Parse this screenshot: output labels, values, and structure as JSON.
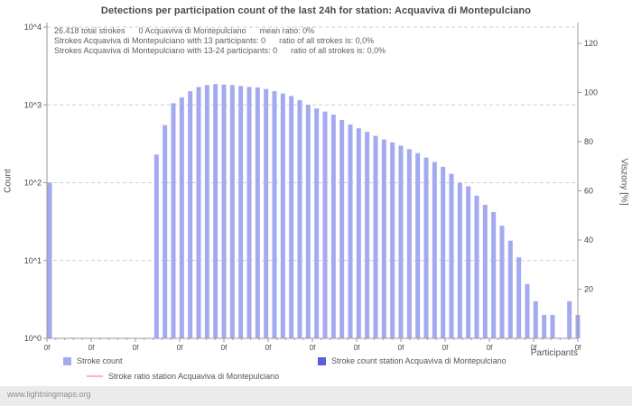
{
  "page": {
    "title": "Detections per participation count of the last 24h for station: Acquaviva di Montepulciano",
    "watermark": "www.lightningmaps.org"
  },
  "annotations": {
    "line1": "26.418 total strokes      0 Acquaviva di Montepulciano      mean ratio: 0%",
    "line2": "Strokes Acquaviva di Montepulciano with 13 participants: 0      ratio of all strokes is: 0,0%",
    "line3": "Strokes Acquaviva di Montepulciano with 13-24 participants: 0      ratio of all strokes is: 0,0%"
  },
  "chart_data": {
    "type": "bar",
    "title": "Detections per participation count of the last 24h for station: Acquaviva di Montepulciano",
    "xlabel": "Participants",
    "ylabel_left": "Count",
    "ylabel_right": "Viszony [%]",
    "y_left_scale": "log",
    "y_left_ticks": [
      "10^0",
      "10^1",
      "10^2",
      "10^3",
      "10^4"
    ],
    "y_right_ticks": [
      "20",
      "40",
      "60",
      "80",
      "100",
      "120"
    ],
    "y_right_max": 132,
    "x_tick_label": "0f",
    "x_major_tick_count": 13,
    "x_range": [
      0,
      63
    ],
    "grid": "dashed-horizontal",
    "legend_position": "bottom",
    "colors": {
      "bar": "#a3aaf0",
      "station_bar": "#5c60d8",
      "ratio_line": "#f0b4de",
      "axis": "#9a9a9a",
      "grid": "#cfcfcf"
    },
    "series": [
      {
        "name": "Stroke count",
        "type": "bar",
        "color": "#a3aaf0",
        "participants": [
          0,
          13,
          14,
          15,
          16,
          17,
          18,
          19,
          20,
          21,
          22,
          23,
          24,
          25,
          26,
          27,
          28,
          29,
          30,
          31,
          32,
          33,
          34,
          35,
          36,
          37,
          38,
          39,
          40,
          41,
          42,
          43,
          44,
          45,
          46,
          47,
          48,
          49,
          50,
          51,
          52,
          53,
          54,
          55,
          56,
          57,
          58,
          59,
          60,
          62,
          63
        ],
        "values": [
          100,
          230,
          550,
          1050,
          1250,
          1500,
          1700,
          1800,
          1850,
          1820,
          1800,
          1750,
          1700,
          1680,
          1600,
          1500,
          1400,
          1300,
          1150,
          1000,
          900,
          820,
          750,
          640,
          560,
          500,
          450,
          400,
          360,
          330,
          300,
          270,
          240,
          210,
          185,
          160,
          130,
          100,
          90,
          68,
          52,
          42,
          28,
          18,
          11,
          5,
          3,
          2,
          2,
          3,
          2
        ]
      },
      {
        "name": "Stroke count station Acquaviva di Montepulciano",
        "type": "bar",
        "color": "#5c60d8",
        "participants": [],
        "values": []
      },
      {
        "name": "Stroke ratio station Acquaviva di Montepulciano",
        "type": "line",
        "color": "#f0b4de",
        "values": []
      }
    ]
  }
}
